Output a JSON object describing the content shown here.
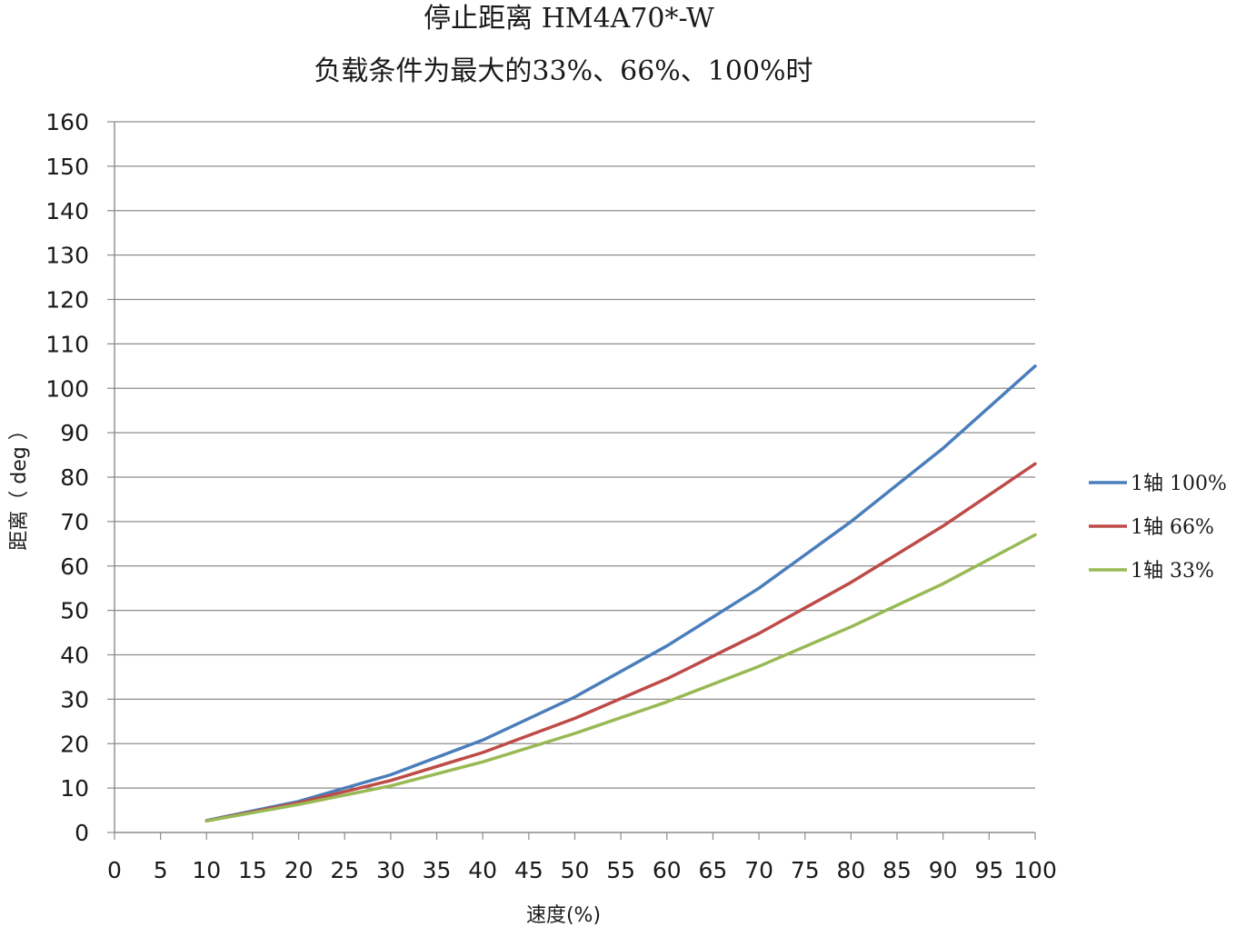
{
  "chart_data": {
    "type": "line",
    "title": "停止距离 HM4A70*-W",
    "subtitle": "负载条件为最大的33%、66%、100%时",
    "xlabel": "速度(%)",
    "ylabel": "距离（ deg ）",
    "xlim": [
      0,
      100
    ],
    "ylim": [
      0,
      160
    ],
    "x_ticks": [
      "0",
      "5",
      "10",
      "15",
      "20",
      "25",
      "30",
      "35",
      "40",
      "45",
      "50",
      "55",
      "60",
      "65",
      "70",
      "75",
      "80",
      "85",
      "90",
      "95",
      "100"
    ],
    "y_ticks": [
      "0",
      "10",
      "20",
      "30",
      "40",
      "50",
      "60",
      "70",
      "80",
      "90",
      "100",
      "110",
      "120",
      "130",
      "140",
      "150",
      "160"
    ],
    "grid": true,
    "legend_position": "right",
    "x": [
      10,
      20,
      30,
      40,
      50,
      60,
      70,
      80,
      90,
      100
    ],
    "series": [
      {
        "name": "1轴 100%",
        "color": "#4a7ebb",
        "values": [
          2.7,
          7.0,
          13.0,
          20.8,
          30.5,
          42.0,
          55.0,
          70.0,
          86.5,
          105.0
        ]
      },
      {
        "name": "1轴 66%",
        "color": "#be4b48",
        "values": [
          2.6,
          6.7,
          11.7,
          18.0,
          25.7,
          34.6,
          44.8,
          56.3,
          69.0,
          83.0
        ]
      },
      {
        "name": "1轴 33%",
        "color": "#98b954",
        "values": [
          2.6,
          6.3,
          10.5,
          15.9,
          22.3,
          29.4,
          37.4,
          46.3,
          56.0,
          67.0
        ]
      }
    ]
  }
}
